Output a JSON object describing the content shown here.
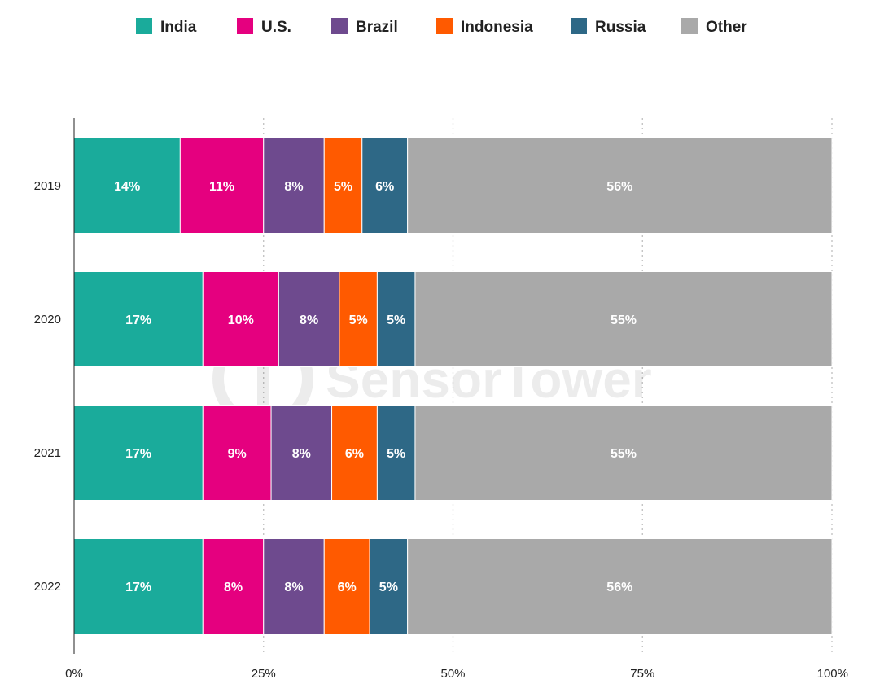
{
  "chart_data": {
    "type": "bar",
    "orientation": "horizontal",
    "stacked": true,
    "normalized": true,
    "categories": [
      "2019",
      "2020",
      "2021",
      "2022"
    ],
    "series": [
      {
        "name": "India",
        "color": "#1aab9b",
        "values": [
          14,
          17,
          17,
          17
        ],
        "labels": [
          "14%",
          "17%",
          "17%",
          "17%"
        ]
      },
      {
        "name": "U.S.",
        "color": "#e5007f",
        "values": [
          11,
          10,
          9,
          8
        ],
        "labels": [
          "11%",
          "10%",
          "9%",
          "8%"
        ]
      },
      {
        "name": "Brazil",
        "color": "#6e4a8e",
        "values": [
          8,
          8,
          8,
          8
        ],
        "labels": [
          "8%",
          "8%",
          "8%",
          "8%"
        ]
      },
      {
        "name": "Indonesia",
        "color": "#ff5a00",
        "values": [
          5,
          5,
          6,
          6
        ],
        "labels": [
          "5%",
          "5%",
          "6%",
          "6%"
        ]
      },
      {
        "name": "Russia",
        "color": "#2e6886",
        "values": [
          6,
          5,
          5,
          5
        ],
        "labels": [
          "6%",
          "5%",
          "5%",
          "5%"
        ]
      },
      {
        "name": "Other",
        "color": "#a9a9a9",
        "values": [
          56,
          55,
          55,
          56
        ],
        "labels": [
          "56%",
          "55%",
          "55%",
          "56%"
        ]
      }
    ],
    "xlim": [
      0,
      100
    ],
    "x_ticks": [
      0,
      25,
      50,
      75,
      100
    ],
    "x_tick_labels": [
      "0%",
      "25%",
      "50%",
      "75%",
      "100%"
    ],
    "grid": "vertical-dotted",
    "legend_position": "top"
  },
  "watermark": {
    "text": "SensorTower"
  }
}
